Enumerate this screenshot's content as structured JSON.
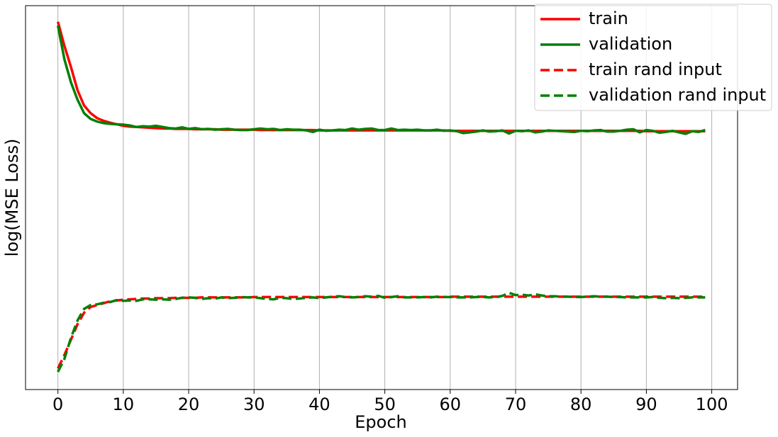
{
  "chart_data": {
    "type": "line",
    "x_label": "Epoch",
    "y_label": "log(MSE Loss)",
    "x": [
      0,
      1,
      2,
      3,
      4,
      5,
      6,
      7,
      8,
      9,
      10,
      11,
      12,
      13,
      14,
      15,
      16,
      17,
      18,
      19,
      20,
      21,
      22,
      23,
      24,
      25,
      26,
      27,
      28,
      29,
      30,
      31,
      32,
      33,
      34,
      35,
      36,
      37,
      38,
      39,
      40,
      41,
      42,
      43,
      44,
      45,
      46,
      47,
      48,
      49,
      50,
      51,
      52,
      53,
      54,
      55,
      56,
      57,
      58,
      59,
      60,
      61,
      62,
      63,
      64,
      65,
      66,
      67,
      68,
      69,
      70,
      71,
      72,
      73,
      74,
      75,
      76,
      77,
      78,
      79,
      80,
      81,
      82,
      83,
      84,
      85,
      86,
      87,
      88,
      89,
      90,
      91,
      92,
      93,
      94,
      95,
      96,
      97,
      98,
      99
    ],
    "xlim": [
      -4.95,
      103.95
    ],
    "xticks": [
      0,
      10,
      20,
      30,
      40,
      50,
      60,
      70,
      80,
      90,
      100
    ],
    "ylim": [
      0,
      1
    ],
    "grid": "x",
    "legend": "upper right",
    "series": [
      {
        "name": "train",
        "color": "#ff0000",
        "linestyle": "solid",
        "values": [
          0.958,
          0.895,
          0.84,
          0.78,
          0.74,
          0.72,
          0.707,
          0.7,
          0.695,
          0.691,
          0.687,
          0.685,
          0.684,
          0.683,
          0.682,
          0.681,
          0.68,
          0.68,
          0.679,
          0.679,
          0.679,
          0.678,
          0.678,
          0.678,
          0.678,
          0.677,
          0.677,
          0.677,
          0.677,
          0.677,
          0.677,
          0.676,
          0.676,
          0.676,
          0.676,
          0.676,
          0.676,
          0.676,
          0.676,
          0.676,
          0.675,
          0.675,
          0.675,
          0.675,
          0.675,
          0.675,
          0.675,
          0.675,
          0.675,
          0.675,
          0.675,
          0.675,
          0.675,
          0.675,
          0.675,
          0.675,
          0.675,
          0.675,
          0.675,
          0.675,
          0.674,
          0.674,
          0.674,
          0.674,
          0.674,
          0.674,
          0.674,
          0.674,
          0.674,
          0.674,
          0.674,
          0.674,
          0.674,
          0.674,
          0.674,
          0.674,
          0.674,
          0.674,
          0.674,
          0.674,
          0.674,
          0.674,
          0.674,
          0.674,
          0.674,
          0.674,
          0.674,
          0.674,
          0.674,
          0.674,
          0.673,
          0.673,
          0.673,
          0.673,
          0.673,
          0.673,
          0.673,
          0.673,
          0.673,
          0.673
        ]
      },
      {
        "name": "validation",
        "color": "#008000",
        "linestyle": "solid",
        "values": [
          0.948,
          0.86,
          0.8,
          0.755,
          0.72,
          0.705,
          0.698,
          0.694,
          0.692,
          0.691,
          0.69,
          0.688,
          0.684,
          0.686,
          0.685,
          0.687,
          0.684,
          0.681,
          0.68,
          0.683,
          0.679,
          0.681,
          0.678,
          0.679,
          0.677,
          0.678,
          0.679,
          0.677,
          0.676,
          0.676,
          0.678,
          0.68,
          0.678,
          0.679,
          0.676,
          0.678,
          0.677,
          0.677,
          0.675,
          0.671,
          0.677,
          0.674,
          0.675,
          0.677,
          0.676,
          0.68,
          0.677,
          0.679,
          0.68,
          0.676,
          0.676,
          0.68,
          0.676,
          0.677,
          0.676,
          0.677,
          0.675,
          0.675,
          0.677,
          0.674,
          0.675,
          0.673,
          0.668,
          0.67,
          0.672,
          0.675,
          0.672,
          0.673,
          0.675,
          0.667,
          0.674,
          0.673,
          0.675,
          0.67,
          0.672,
          0.675,
          0.674,
          0.673,
          0.672,
          0.671,
          0.674,
          0.673,
          0.675,
          0.676,
          0.672,
          0.672,
          0.674,
          0.677,
          0.678,
          0.67,
          0.676,
          0.674,
          0.669,
          0.671,
          0.674,
          0.67,
          0.666,
          0.673,
          0.671,
          0.676
        ]
      },
      {
        "name": "train rand input",
        "color": "#ff0000",
        "linestyle": "dashed",
        "values": [
          0.055,
          0.09,
          0.13,
          0.17,
          0.2,
          0.215,
          0.22,
          0.225,
          0.23,
          0.232,
          0.234,
          0.235,
          0.236,
          0.237,
          0.237,
          0.238,
          0.238,
          0.238,
          0.239,
          0.239,
          0.239,
          0.239,
          0.24,
          0.24,
          0.24,
          0.24,
          0.24,
          0.24,
          0.24,
          0.24,
          0.241,
          0.241,
          0.241,
          0.241,
          0.241,
          0.241,
          0.241,
          0.241,
          0.241,
          0.241,
          0.241,
          0.241,
          0.241,
          0.241,
          0.241,
          0.241,
          0.241,
          0.241,
          0.241,
          0.241,
          0.241,
          0.241,
          0.241,
          0.241,
          0.241,
          0.241,
          0.241,
          0.241,
          0.241,
          0.241,
          0.242,
          0.242,
          0.242,
          0.242,
          0.242,
          0.242,
          0.242,
          0.242,
          0.242,
          0.242,
          0.242,
          0.242,
          0.242,
          0.242,
          0.242,
          0.242,
          0.242,
          0.242,
          0.242,
          0.242,
          0.242,
          0.242,
          0.242,
          0.242,
          0.242,
          0.242,
          0.242,
          0.242,
          0.242,
          0.242,
          0.242,
          0.242,
          0.242,
          0.242,
          0.242,
          0.242,
          0.242,
          0.242,
          0.242,
          0.242
        ]
      },
      {
        "name": "validation rand input",
        "color": "#008000",
        "linestyle": "dashed",
        "values": [
          0.046,
          0.08,
          0.135,
          0.18,
          0.21,
          0.22,
          0.222,
          0.226,
          0.228,
          0.233,
          0.231,
          0.232,
          0.231,
          0.235,
          0.235,
          0.234,
          0.235,
          0.234,
          0.236,
          0.239,
          0.24,
          0.239,
          0.236,
          0.238,
          0.237,
          0.24,
          0.238,
          0.239,
          0.241,
          0.24,
          0.24,
          0.238,
          0.236,
          0.235,
          0.239,
          0.238,
          0.236,
          0.237,
          0.239,
          0.24,
          0.238,
          0.24,
          0.242,
          0.243,
          0.241,
          0.24,
          0.241,
          0.243,
          0.242,
          0.244,
          0.239,
          0.241,
          0.243,
          0.24,
          0.24,
          0.24,
          0.241,
          0.24,
          0.242,
          0.241,
          0.241,
          0.24,
          0.24,
          0.24,
          0.241,
          0.241,
          0.24,
          0.241,
          0.244,
          0.252,
          0.246,
          0.247,
          0.245,
          0.248,
          0.245,
          0.243,
          0.243,
          0.242,
          0.242,
          0.241,
          0.241,
          0.242,
          0.243,
          0.242,
          0.242,
          0.241,
          0.241,
          0.24,
          0.24,
          0.24,
          0.24,
          0.241,
          0.239,
          0.238,
          0.239,
          0.238,
          0.239,
          0.24,
          0.24,
          0.24
        ]
      }
    ]
  }
}
